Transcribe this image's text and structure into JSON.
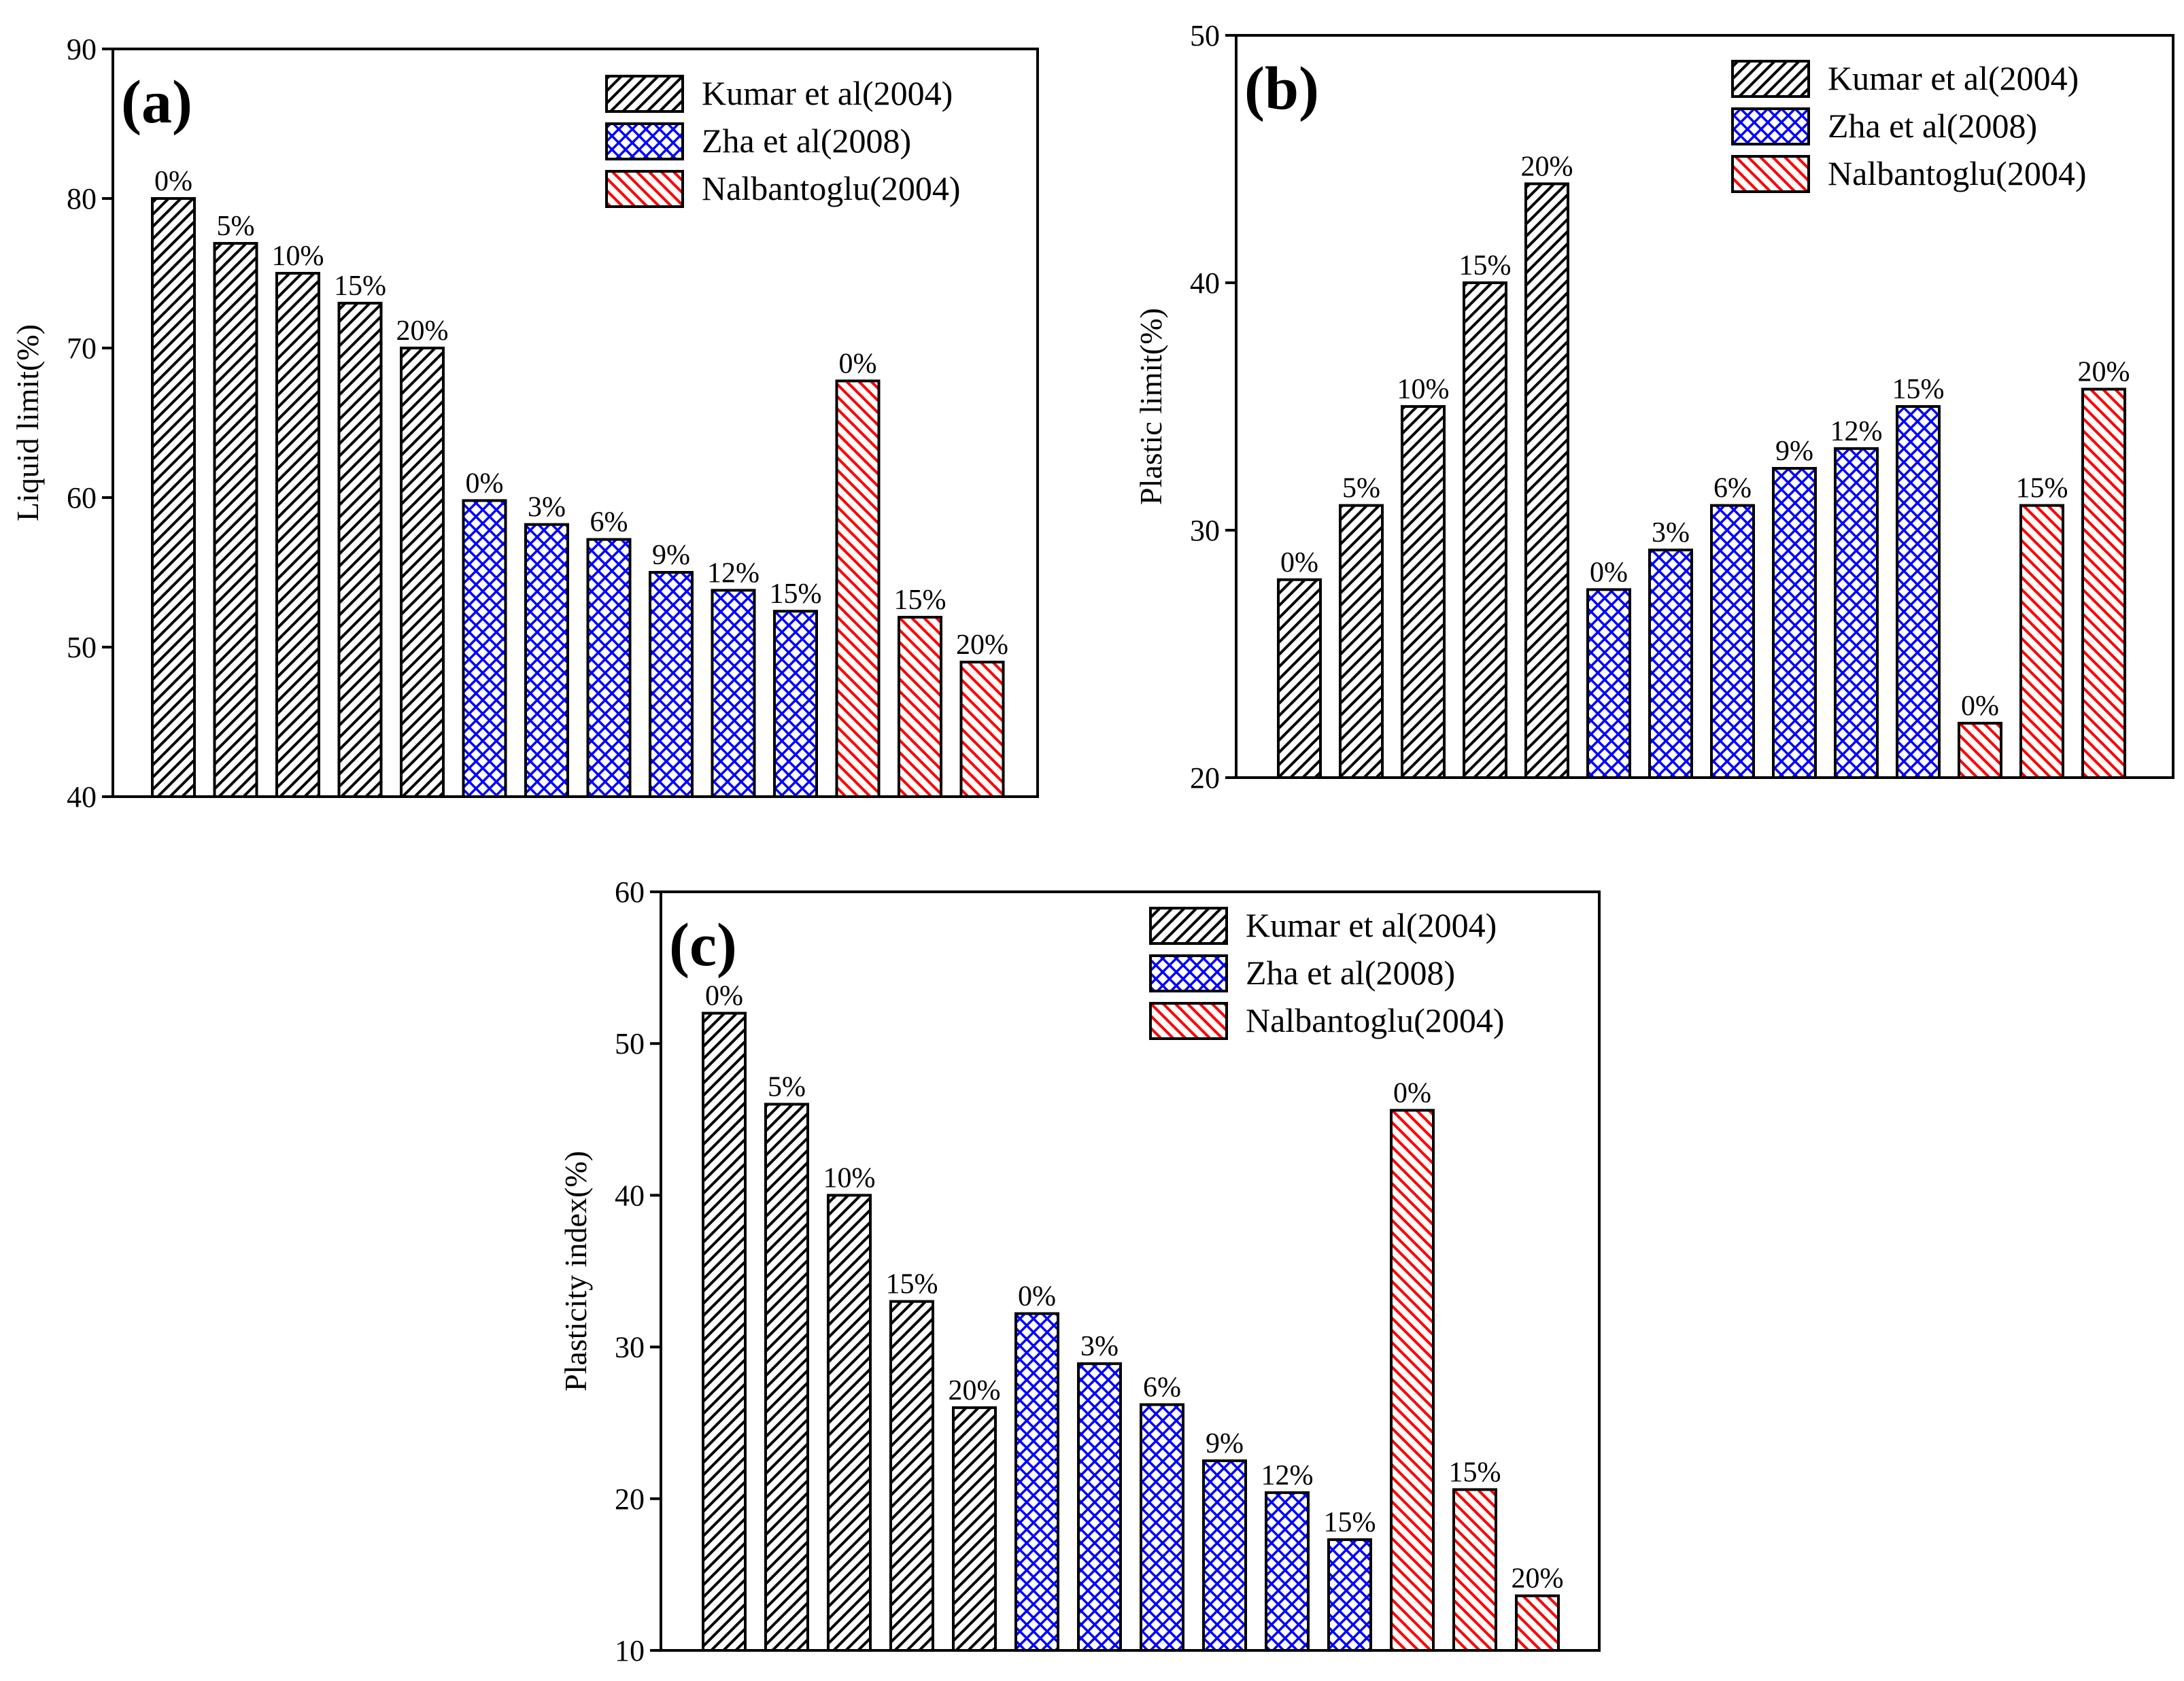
{
  "colors": {
    "kumar": "#000000",
    "zha": "#0000ff",
    "nalb": "#ff0000",
    "frame": "#000000",
    "background": "#ffffff"
  },
  "legend": [
    {
      "key": "kumar",
      "label": "Kumar et al(2004)",
      "pattern": "diagonal-hatch",
      "color": "#000000"
    },
    {
      "key": "zha",
      "label": "Zha et al(2008)",
      "pattern": "cross-hatch",
      "color": "#0000ff"
    },
    {
      "key": "nalb",
      "label": "Nalbantoglu(2004)",
      "pattern": "diagonal-hatch",
      "color": "#ff0000"
    }
  ],
  "chart_data": [
    {
      "type": "bar",
      "panel_label": "(a)",
      "ylabel": "Liquid limit(%)",
      "ylim": [
        40,
        90
      ],
      "yticks": [
        40,
        50,
        60,
        70,
        80,
        90
      ],
      "legend_position": "top-right",
      "bars": [
        {
          "series": "kumar",
          "label": "0%",
          "value": 80
        },
        {
          "series": "kumar",
          "label": "5%",
          "value": 77
        },
        {
          "series": "kumar",
          "label": "10%",
          "value": 75
        },
        {
          "series": "kumar",
          "label": "15%",
          "value": 73
        },
        {
          "series": "kumar",
          "label": "20%",
          "value": 70
        },
        {
          "series": "zha",
          "label": "0%",
          "value": 59.8
        },
        {
          "series": "zha",
          "label": "3%",
          "value": 58.2
        },
        {
          "series": "zha",
          "label": "6%",
          "value": 57.2
        },
        {
          "series": "zha",
          "label": "9%",
          "value": 55
        },
        {
          "series": "zha",
          "label": "12%",
          "value": 53.8
        },
        {
          "series": "zha",
          "label": "15%",
          "value": 52.4
        },
        {
          "series": "nalb",
          "label": "0%",
          "value": 67.8
        },
        {
          "series": "nalb",
          "label": "15%",
          "value": 52
        },
        {
          "series": "nalb",
          "label": "20%",
          "value": 49
        }
      ]
    },
    {
      "type": "bar",
      "panel_label": "(b)",
      "ylabel": "Plastic limit(%)",
      "ylim": [
        20,
        50
      ],
      "yticks": [
        20,
        30,
        40,
        50
      ],
      "legend_position": "top-right",
      "bars": [
        {
          "series": "kumar",
          "label": "0%",
          "value": 28
        },
        {
          "series": "kumar",
          "label": "5%",
          "value": 31
        },
        {
          "series": "kumar",
          "label": "10%",
          "value": 35
        },
        {
          "series": "kumar",
          "label": "15%",
          "value": 40
        },
        {
          "series": "kumar",
          "label": "20%",
          "value": 44
        },
        {
          "series": "zha",
          "label": "0%",
          "value": 27.6
        },
        {
          "series": "zha",
          "label": "3%",
          "value": 29.2
        },
        {
          "series": "zha",
          "label": "6%",
          "value": 31
        },
        {
          "series": "zha",
          "label": "9%",
          "value": 32.5
        },
        {
          "series": "zha",
          "label": "12%",
          "value": 33.3
        },
        {
          "series": "zha",
          "label": "15%",
          "value": 35
        },
        {
          "series": "nalb",
          "label": "0%",
          "value": 22.2
        },
        {
          "series": "nalb",
          "label": "15%",
          "value": 31
        },
        {
          "series": "nalb",
          "label": "20%",
          "value": 35.7
        }
      ]
    },
    {
      "type": "bar",
      "panel_label": "(c)",
      "ylabel": "Plasticity index(%)",
      "ylim": [
        10,
        60
      ],
      "yticks": [
        10,
        20,
        30,
        40,
        50,
        60
      ],
      "legend_position": "top-right",
      "bars": [
        {
          "series": "kumar",
          "label": "0%",
          "value": 52
        },
        {
          "series": "kumar",
          "label": "5%",
          "value": 46
        },
        {
          "series": "kumar",
          "label": "10%",
          "value": 40
        },
        {
          "series": "kumar",
          "label": "15%",
          "value": 33
        },
        {
          "series": "kumar",
          "label": "20%",
          "value": 26
        },
        {
          "series": "zha",
          "label": "0%",
          "value": 32.2
        },
        {
          "series": "zha",
          "label": "3%",
          "value": 28.9
        },
        {
          "series": "zha",
          "label": "6%",
          "value": 26.2
        },
        {
          "series": "zha",
          "label": "9%",
          "value": 22.5
        },
        {
          "series": "zha",
          "label": "12%",
          "value": 20.4
        },
        {
          "series": "zha",
          "label": "15%",
          "value": 17.3
        },
        {
          "series": "nalb",
          "label": "0%",
          "value": 45.6
        },
        {
          "series": "nalb",
          "label": "15%",
          "value": 20.6
        },
        {
          "series": "nalb",
          "label": "20%",
          "value": 13.6
        }
      ]
    }
  ]
}
